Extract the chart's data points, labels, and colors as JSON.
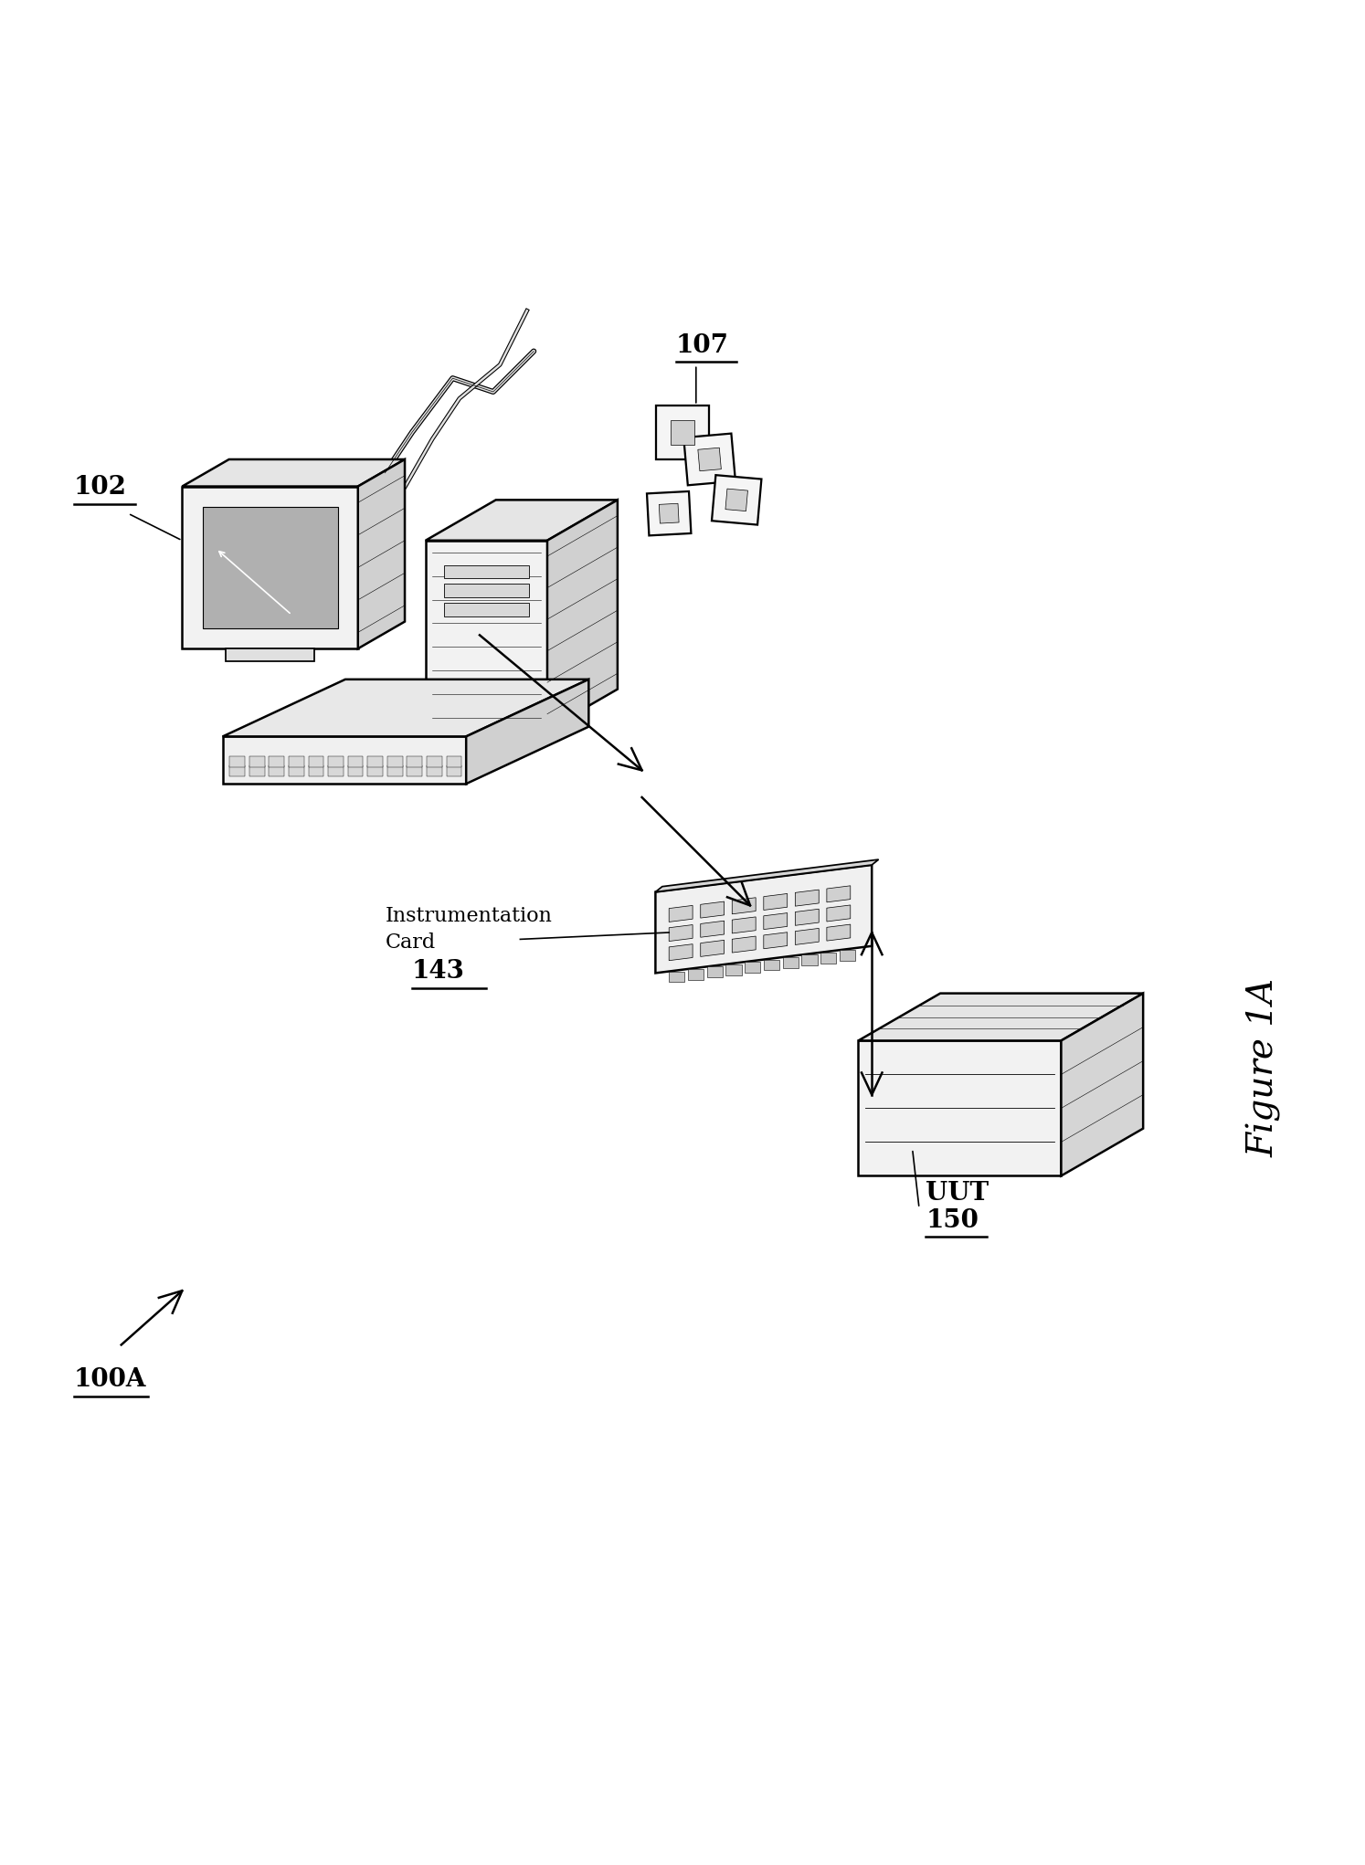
{
  "figure_label": "Figure 1A",
  "diagram_label": "100A",
  "background_color": "#ffffff",
  "line_color": "#000000",
  "labels": {
    "computer": "102",
    "disks": "107",
    "card": "143",
    "card_text1": "Instrumentation",
    "card_text2": "Card",
    "uut": "UUT",
    "uut_num": "150"
  },
  "figsize": [
    14.94,
    20.42
  ],
  "dpi": 100
}
